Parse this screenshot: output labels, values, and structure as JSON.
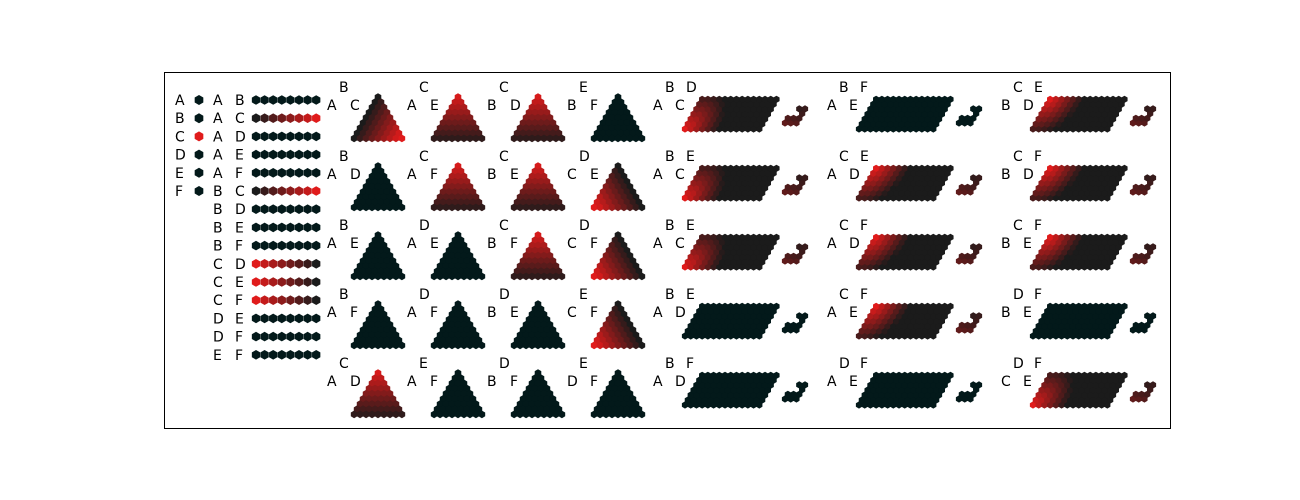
{
  "colors": {
    "dark": "#03191a",
    "red": "#e01b1b",
    "mid": "#1b1b1b",
    "frame": "#000000",
    "background": "#ffffff"
  },
  "singles": {
    "labels": [
      "A",
      "B",
      "C",
      "D",
      "E",
      "F"
    ],
    "active": [
      false,
      false,
      true,
      false,
      false,
      false
    ]
  },
  "pairs": [
    {
      "a": "A",
      "b": "B",
      "pattern": "none"
    },
    {
      "a": "A",
      "b": "C",
      "pattern": "ramp_up"
    },
    {
      "a": "A",
      "b": "D",
      "pattern": "none"
    },
    {
      "a": "A",
      "b": "E",
      "pattern": "none"
    },
    {
      "a": "A",
      "b": "F",
      "pattern": "none"
    },
    {
      "a": "B",
      "b": "C",
      "pattern": "ramp_up"
    },
    {
      "a": "B",
      "b": "D",
      "pattern": "none"
    },
    {
      "a": "B",
      "b": "E",
      "pattern": "none"
    },
    {
      "a": "B",
      "b": "F",
      "pattern": "none"
    },
    {
      "a": "C",
      "b": "D",
      "pattern": "ramp_down"
    },
    {
      "a": "C",
      "b": "E",
      "pattern": "ramp_down"
    },
    {
      "a": "C",
      "b": "F",
      "pattern": "ramp_down"
    },
    {
      "a": "D",
      "b": "E",
      "pattern": "none"
    },
    {
      "a": "D",
      "b": "F",
      "pattern": "none"
    },
    {
      "a": "E",
      "b": "F",
      "pattern": "none"
    }
  ],
  "triangles": [
    {
      "top": "B",
      "left": "A",
      "right": "C",
      "hot": "right"
    },
    {
      "top": "B",
      "left": "A",
      "right": "D",
      "hot": "none"
    },
    {
      "top": "B",
      "left": "A",
      "right": "E",
      "hot": "none"
    },
    {
      "top": "B",
      "left": "A",
      "right": "F",
      "hot": "none"
    },
    {
      "top": "C",
      "left": "A",
      "right": "D",
      "hot": "top"
    },
    {
      "top": "C",
      "left": "A",
      "right": "E",
      "hot": "top"
    },
    {
      "top": "C",
      "left": "A",
      "right": "F",
      "hot": "top"
    },
    {
      "top": "D",
      "left": "A",
      "right": "E",
      "hot": "none"
    },
    {
      "top": "D",
      "left": "A",
      "right": "F",
      "hot": "none"
    },
    {
      "top": "E",
      "left": "A",
      "right": "F",
      "hot": "none"
    },
    {
      "top": "C",
      "left": "B",
      "right": "D",
      "hot": "top"
    },
    {
      "top": "C",
      "left": "B",
      "right": "E",
      "hot": "top"
    },
    {
      "top": "C",
      "left": "B",
      "right": "F",
      "hot": "top"
    },
    {
      "top": "D",
      "left": "B",
      "right": "E",
      "hot": "none"
    },
    {
      "top": "D",
      "left": "B",
      "right": "F",
      "hot": "none"
    },
    {
      "top": "E",
      "left": "B",
      "right": "F",
      "hot": "none"
    },
    {
      "top": "D",
      "left": "C",
      "right": "E",
      "hot": "left"
    },
    {
      "top": "D",
      "left": "C",
      "right": "F",
      "hot": "left"
    },
    {
      "top": "E",
      "left": "C",
      "right": "F",
      "hot": "left"
    },
    {
      "top": "E",
      "left": "D",
      "right": "F",
      "hot": "none"
    }
  ],
  "quads": [
    {
      "l1": "B",
      "l2": "D",
      "l3": "A",
      "l4": "C",
      "hot": "lowerleft"
    },
    {
      "l1": "B",
      "l2": "E",
      "l3": "A",
      "l4": "C",
      "hot": "lowerleft"
    },
    {
      "l1": "B",
      "l2": "E",
      "l3": "A",
      "l4": "C",
      "hot": "lowerleft"
    },
    {
      "l1": "B",
      "l2": "E",
      "l3": "A",
      "l4": "D",
      "hot": "none"
    },
    {
      "l1": "B",
      "l2": "F",
      "l3": "A",
      "l4": "D",
      "hot": "none"
    },
    {
      "l1": "B",
      "l2": "F",
      "l3": "A",
      "l4": "E",
      "hot": "none"
    },
    {
      "l1": "C",
      "l2": "E",
      "l3": "A",
      "l4": "D",
      "hot": "upperleft"
    },
    {
      "l1": "C",
      "l2": "F",
      "l3": "A",
      "l4": "D",
      "hot": "upperleft"
    },
    {
      "l1": "C",
      "l2": "F",
      "l3": "A",
      "l4": "E",
      "hot": "upperleft"
    },
    {
      "l1": "D",
      "l2": "F",
      "l3": "A",
      "l4": "E",
      "hot": "none"
    },
    {
      "l1": "C",
      "l2": "E",
      "l3": "B",
      "l4": "D",
      "hot": "upperleft"
    },
    {
      "l1": "C",
      "l2": "F",
      "l3": "B",
      "l4": "D",
      "hot": "upperleft"
    },
    {
      "l1": "C",
      "l2": "F",
      "l3": "B",
      "l4": "E",
      "hot": "upperleft"
    },
    {
      "l1": "D",
      "l2": "F",
      "l3": "B",
      "l4": "E",
      "hot": "none"
    },
    {
      "l1": "D",
      "l2": "F",
      "l3": "C",
      "l4": "E",
      "hot": "lowerleft"
    }
  ]
}
